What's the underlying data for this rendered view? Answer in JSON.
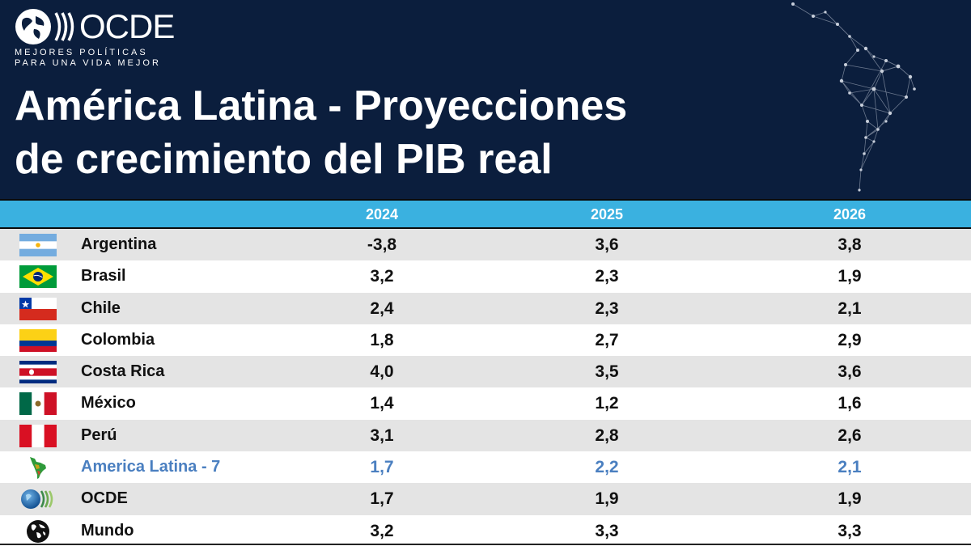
{
  "brand": {
    "name": "OCDE",
    "tagline_line1": "MEJORES POLÍTICAS",
    "tagline_line2": "PARA UNA VIDA MEJOR"
  },
  "title_line1": "América Latina - Proyecciones",
  "title_line2": "de crecimiento del PIB real",
  "colors": {
    "header_bg": "#0b1e3d",
    "table_header": "#3ab1e0",
    "row_alt": "#e4e4e4",
    "highlight_text": "#4a7fc0"
  },
  "chart_data": {
    "type": "table",
    "title": "América Latina - Proyecciones de crecimiento del PIB real",
    "columns": [
      "2024",
      "2025",
      "2026"
    ],
    "rows": [
      {
        "name": "Argentina",
        "icon": "flag-argentina-icon",
        "values": [
          "-3,8",
          "3,6",
          "3,8"
        ]
      },
      {
        "name": "Brasil",
        "icon": "flag-brazil-icon",
        "values": [
          "3,2",
          "2,3",
          "1,9"
        ]
      },
      {
        "name": "Chile",
        "icon": "flag-chile-icon",
        "values": [
          "2,4",
          "2,3",
          "2,1"
        ]
      },
      {
        "name": "Colombia",
        "icon": "flag-colombia-icon",
        "values": [
          "1,8",
          "2,7",
          "2,9"
        ]
      },
      {
        "name": "Costa Rica",
        "icon": "flag-costa-rica-icon",
        "values": [
          "4,0",
          "3,5",
          "3,6"
        ]
      },
      {
        "name": "México",
        "icon": "flag-mexico-icon",
        "values": [
          "1,4",
          "1,2",
          "1,6"
        ]
      },
      {
        "name": "Perú",
        "icon": "flag-peru-icon",
        "values": [
          "3,1",
          "2,8",
          "2,6"
        ]
      },
      {
        "name": "America Latina - 7",
        "icon": "latin-america-map-icon",
        "values": [
          "1,7",
          "2,2",
          "2,1"
        ],
        "highlight": true
      },
      {
        "name": "OCDE",
        "icon": "oecd-logo-icon",
        "values": [
          "1,7",
          "1,9",
          "1,9"
        ]
      },
      {
        "name": "Mundo",
        "icon": "world-globe-icon",
        "values": [
          "3,2",
          "3,3",
          "3,3"
        ]
      }
    ]
  }
}
